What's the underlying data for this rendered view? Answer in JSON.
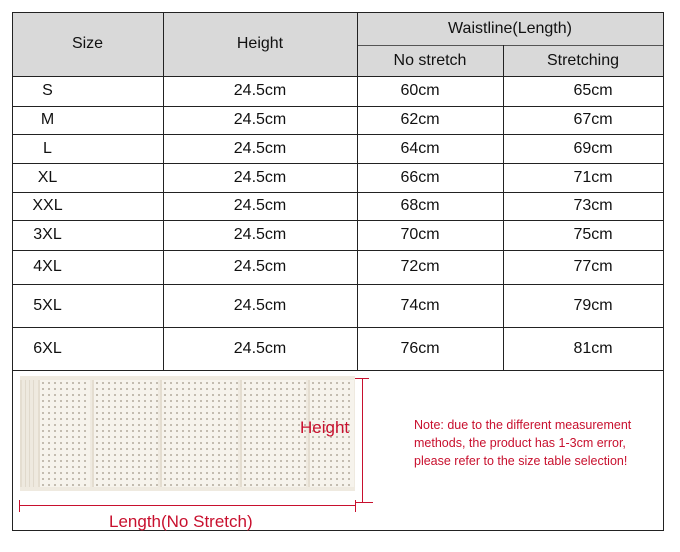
{
  "table": {
    "headers": {
      "size": "Size",
      "height": "Height",
      "waistline": "Waistline(Length)",
      "no_stretch": "No stretch",
      "stretching": "Stretching"
    },
    "rows": [
      {
        "size": "S",
        "height": "24.5cm",
        "no_stretch": "60cm",
        "stretching": "65cm"
      },
      {
        "size": "M",
        "height": "24.5cm",
        "no_stretch": "62cm",
        "stretching": "67cm"
      },
      {
        "size": "L",
        "height": "24.5cm",
        "no_stretch": "64cm",
        "stretching": "69cm"
      },
      {
        "size": "XL",
        "height": "24.5cm",
        "no_stretch": "66cm",
        "stretching": "71cm"
      },
      {
        "size": "XXL",
        "height": "24.5cm",
        "no_stretch": "68cm",
        "stretching": "73cm"
      },
      {
        "size": "3XL",
        "height": "24.5cm",
        "no_stretch": "70cm",
        "stretching": "75cm"
      },
      {
        "size": "4XL",
        "height": "24.5cm",
        "no_stretch": "72cm",
        "stretching": "77cm"
      },
      {
        "size": "5XL",
        "height": "24.5cm",
        "no_stretch": "74cm",
        "stretching": "79cm"
      },
      {
        "size": "6XL",
        "height": "24.5cm",
        "no_stretch": "76cm",
        "stretching": "81cm"
      }
    ]
  },
  "diagram": {
    "height_label": "Height",
    "length_label": "Length(No Stretch)"
  },
  "note": {
    "lines": [
      "Note: due to the different measurement",
      "methods, the product has 1-3cm error,",
      "please refer to the size table selection!"
    ]
  },
  "colors": {
    "header_bg": "#d9d9d9",
    "annotation_red": "#c8102e"
  }
}
